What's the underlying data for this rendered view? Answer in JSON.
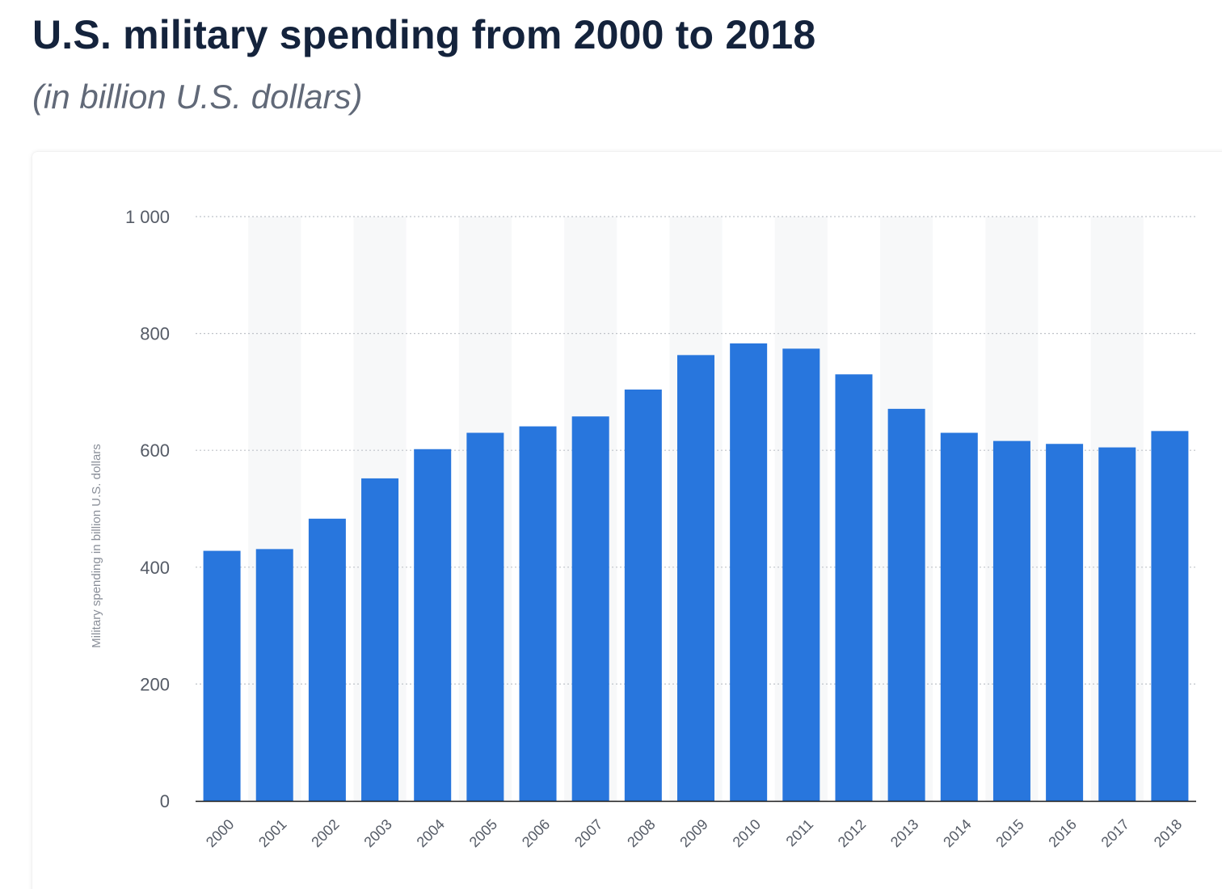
{
  "title": "U.S. military spending from 2000 to 2018",
  "subtitle": "(in billion U.S. dollars)",
  "colors": {
    "bar": "#2876dd",
    "stripe": "#f7f8f9",
    "grid": "#bfc3c9",
    "axis": "#1a1a1a"
  },
  "chart_data": {
    "type": "bar",
    "title": "U.S. military spending from 2000 to 2018",
    "subtitle": "(in billion U.S. dollars)",
    "xlabel": "",
    "ylabel": "Military spending in billion U.S. dollars",
    "ylim": [
      0,
      1000
    ],
    "yticks": [
      0,
      200,
      400,
      600,
      800,
      1000
    ],
    "ytick_labels": [
      "0",
      "200",
      "400",
      "600",
      "800",
      "1 000"
    ],
    "grid": true,
    "categories": [
      "2000",
      "2001",
      "2002",
      "2003",
      "2004",
      "2005",
      "2006",
      "2007",
      "2008",
      "2009",
      "2010",
      "2011",
      "2012",
      "2013",
      "2014",
      "2015",
      "2016",
      "2017",
      "2018"
    ],
    "values": [
      428,
      431,
      483,
      552,
      602,
      630,
      641,
      658,
      704,
      763,
      783,
      774,
      730,
      671,
      630,
      616,
      611,
      605,
      633
    ]
  }
}
